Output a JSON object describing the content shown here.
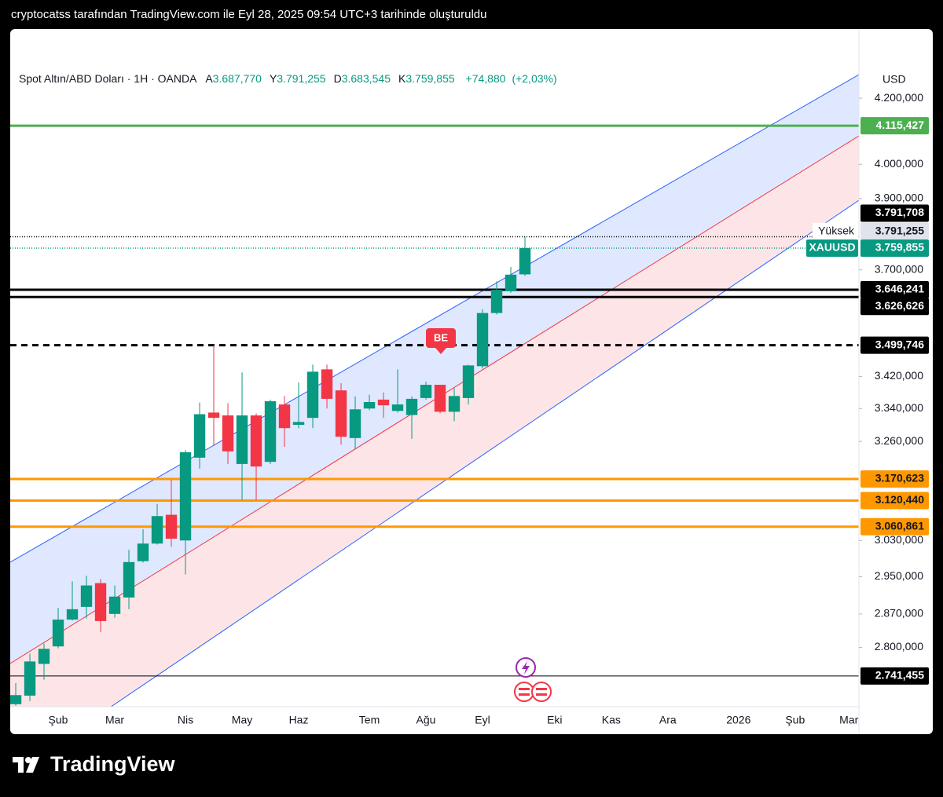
{
  "header": {
    "caption": "cryptocatss tarafından TradingView.com ile Eyl 28, 2025 09:54 UTC+3 tarihinde oluşturuldu"
  },
  "footer": {
    "brand": "TradingView"
  },
  "chart_data": {
    "type": "candlestick",
    "legend": {
      "symbol": "Spot Altın/ABD Doları · 1H · OANDA",
      "ohlc": [
        {
          "name": "A",
          "value": 3687.77,
          "label": "3.687,770"
        },
        {
          "name": "Y",
          "value": 3791.255,
          "label": "3.791,255"
        },
        {
          "name": "D",
          "value": 3683.545,
          "label": "3.683,545"
        },
        {
          "name": "K",
          "value": 3759.855,
          "label": "3.759,855"
        }
      ],
      "change": {
        "value": 74.88,
        "label": "+74,880"
      },
      "change_pct": {
        "value": 2.03,
        "label": "(+2,03%)"
      }
    },
    "currency": "USD",
    "log_scale": true,
    "grid": false,
    "ylim": [
      2680,
      4420
    ],
    "yticks": [
      {
        "value": 2800,
        "label": "2.800,000"
      },
      {
        "value": 2870,
        "label": "2.870,000"
      },
      {
        "value": 2950,
        "label": "2.950,000"
      },
      {
        "value": 3030,
        "label": "3.030,000"
      },
      {
        "value": 3260,
        "label": "3.260,000"
      },
      {
        "value": 3340,
        "label": "3.340,000"
      },
      {
        "value": 3420,
        "label": "3.420,000"
      },
      {
        "value": 3700,
        "label": "3.700,000"
      },
      {
        "value": 3900,
        "label": "3.900,000"
      },
      {
        "value": 4000,
        "label": "4.000,000"
      },
      {
        "value": 4200,
        "label": "4.200,000"
      }
    ],
    "xlim": [
      -0.39,
      59.61
    ],
    "xticks": [
      {
        "value": 3,
        "label": "Şub"
      },
      {
        "value": 7,
        "label": "Mar"
      },
      {
        "value": 12,
        "label": "Nis"
      },
      {
        "value": 16,
        "label": "May"
      },
      {
        "value": 20,
        "label": "Haz"
      },
      {
        "value": 25,
        "label": "Tem"
      },
      {
        "value": 29,
        "label": "Ağu"
      },
      {
        "value": 33,
        "label": "Eyl"
      },
      {
        "value": 38.1,
        "label": "Eki"
      },
      {
        "value": 42.1,
        "label": "Kas"
      },
      {
        "value": 46.1,
        "label": "Ara"
      },
      {
        "value": 51.1,
        "label": "2026"
      },
      {
        "value": 55.1,
        "label": "Şub"
      },
      {
        "value": 58.9,
        "label": "Mar"
      }
    ],
    "x": [
      0,
      1,
      2,
      3,
      4,
      5,
      6,
      7,
      8,
      9,
      10,
      11,
      12,
      13,
      14,
      15,
      16,
      17,
      18,
      19,
      20,
      21,
      22,
      23,
      24,
      25,
      26,
      27,
      28,
      29,
      30,
      31,
      32,
      33,
      34,
      35,
      36
    ],
    "series": [
      {
        "name": "XAUUSD",
        "up_color": "#089981",
        "down_color": "#f23645",
        "open": [
          2685,
          2702,
          2766,
          2802,
          2858,
          2885,
          2936,
          2870,
          2905,
          2984,
          3023,
          3088,
          3030,
          3221,
          3330,
          3323,
          3206,
          3323,
          3211,
          3350,
          3300,
          3317,
          3438,
          3385,
          3268,
          3340,
          3362,
          3334,
          3324,
          3366,
          3399,
          3332,
          3366,
          3446,
          3584,
          3642,
          3687.77
        ],
        "high": [
          2727,
          2787,
          2808,
          2883,
          2940,
          2952,
          2945,
          2931,
          3009,
          3055,
          3113,
          3169,
          3239,
          3355,
          3500,
          3353,
          3430,
          3328,
          3362,
          3371,
          3405,
          3450,
          3450,
          3403,
          3370,
          3374,
          3380,
          3438,
          3370,
          3407,
          3399,
          3391,
          3450,
          3594,
          3669,
          3708,
          3791.255
        ],
        "low": [
          2682,
          2691,
          2734,
          2798,
          2856,
          2860,
          2832,
          2862,
          2880,
          2981,
          3021,
          3016,
          2955,
          3195,
          3249,
          3206,
          3122,
          3122,
          3206,
          3247,
          3292,
          3292,
          3340,
          3252,
          3241,
          3336,
          3317,
          3330,
          3266,
          3362,
          3328,
          3309,
          3350,
          3440,
          3580,
          3638,
          3683.545
        ],
        "close": [
          2703,
          2771,
          2797,
          2858,
          2880,
          2931,
          2855,
          2907,
          2982,
          3023,
          3085,
          3034,
          3234,
          3326,
          3317,
          3236,
          3323,
          3200,
          3358,
          3292,
          3307,
          3432,
          3364,
          3271,
          3338,
          3356,
          3348,
          3350,
          3364,
          3399,
          3332,
          3371,
          3448,
          3584,
          3646,
          3687,
          3759.855
        ]
      }
    ],
    "hlines": [
      {
        "value": 4115.427,
        "label": "4.115,427",
        "color": "#4caf50",
        "style": "solid",
        "text_color": "#ffffff"
      },
      {
        "value": 3791.708,
        "label": "3.791,708",
        "color": "#000000",
        "style": "dotted",
        "text_color": "#ffffff"
      },
      {
        "value": 3791.255,
        "label": "3.791,255",
        "color": "#e0e3eb",
        "style": "marker",
        "text_color": "#131722",
        "note": "Yüksek"
      },
      {
        "value": 3759.855,
        "label": "3.759,855",
        "color": "#089981",
        "style": "dotted",
        "text_color": "#ffffff"
      },
      {
        "value": 3646.241,
        "label": "3.646,241",
        "color": "#000000",
        "style": "solid",
        "text_color": "#ffffff"
      },
      {
        "value": 3626.626,
        "label": "3.626,626",
        "color": "#000000",
        "style": "solid",
        "text_color": "#ffffff"
      },
      {
        "value": 3499.746,
        "label": "3.499,746",
        "color": "#000000",
        "style": "dashed",
        "text_color": "#ffffff"
      },
      {
        "value": 3170.623,
        "label": "3.170,623",
        "color": "#ff9800",
        "style": "solid",
        "text_color": "#131722"
      },
      {
        "value": 3120.44,
        "label": "3.120,440",
        "color": "#ff9800",
        "style": "solid",
        "text_color": "#131722"
      },
      {
        "value": 3060.861,
        "label": "3.060,861",
        "color": "#ff9800",
        "style": "solid",
        "text_color": "#131722"
      },
      {
        "value": 2741.455,
        "label": "2.741,455",
        "color": "#000000",
        "style": "thin",
        "text_color": "#ffffff"
      }
    ],
    "markers": [
      {
        "label": "BE"
      }
    ]
  }
}
